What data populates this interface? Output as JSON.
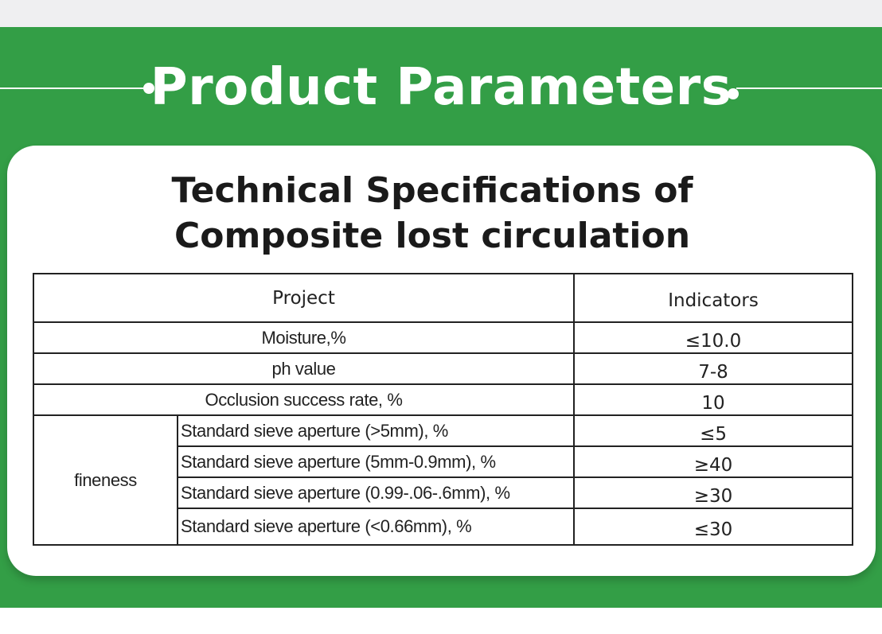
{
  "header": {
    "title": "Product Parameters"
  },
  "card": {
    "title_line1": "Technical Specifications of",
    "title_line2": "Composite lost circulation"
  },
  "table": {
    "headers": {
      "project": "Project",
      "indicators": "Indicators"
    },
    "rows": [
      {
        "project": "Moisture,%",
        "indicator": "≤10.0"
      },
      {
        "project": "ph value",
        "indicator": "7-8"
      },
      {
        "project": "Occlusion success rate, %",
        "indicator": "10"
      }
    ],
    "fineness": {
      "label": "fineness",
      "rows": [
        {
          "project": "Standard sieve aperture (>5mm), %",
          "indicator": "≤5"
        },
        {
          "project": "Standard sieve aperture (5mm-0.9mm), %",
          "indicator": "≥40"
        },
        {
          "project": "Standard sieve aperture (0.99-.06-.6mm), %",
          "indicator": "≥30"
        },
        {
          "project": "Standard sieve aperture (<0.66mm), %",
          "indicator": "≤30"
        }
      ]
    }
  },
  "colors": {
    "brand_green": "#339e46",
    "card_background": "#ffffff",
    "text": "#1a1a1a",
    "table_border": "#222222"
  }
}
